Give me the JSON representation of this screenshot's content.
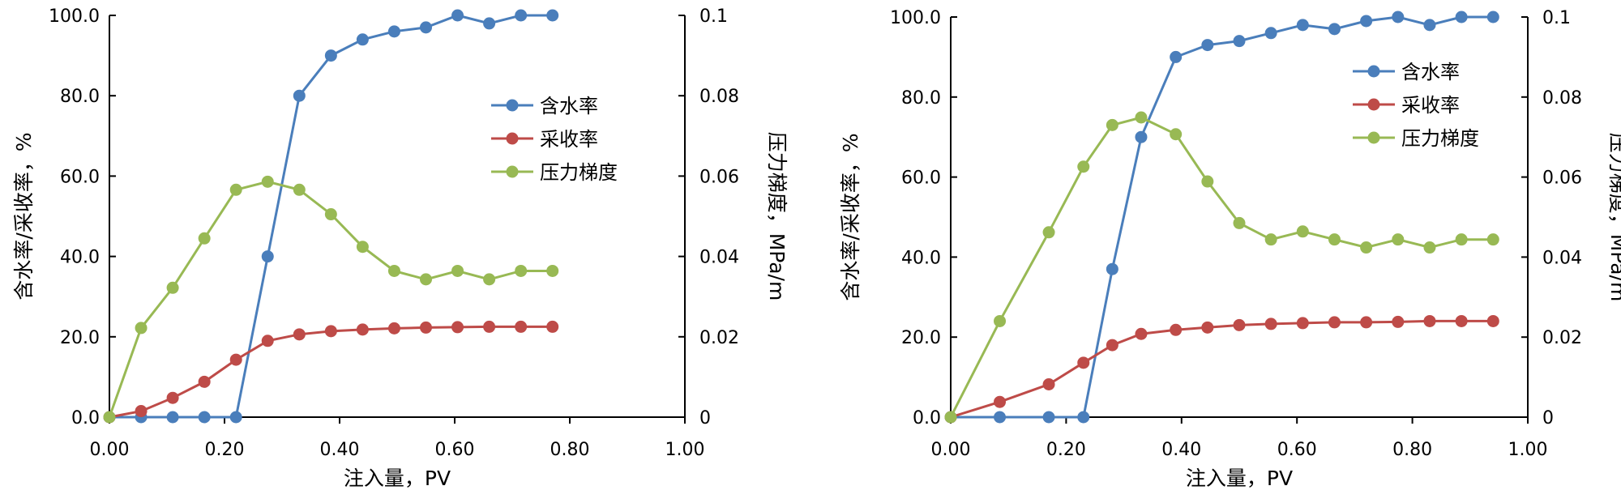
{
  "chart_data": [
    {
      "type": "line",
      "title": "",
      "xlabel": "注入量，PV",
      "ylabel": "含水率/采收率，%",
      "y2label": "压力梯度，MPa/m",
      "xlim": [
        0,
        1.0
      ],
      "ylim": [
        0,
        100
      ],
      "y2lim": [
        0,
        0.1
      ],
      "xticks": [
        "0.00",
        "0.20",
        "0.40",
        "0.60",
        "0.80",
        "1.00"
      ],
      "yticks": [
        "0.0",
        "20.0",
        "40.0",
        "60.0",
        "80.0",
        "100.0"
      ],
      "y2ticks": [
        "0",
        "0.02",
        "0.04",
        "0.06",
        "0.08",
        "0.1"
      ],
      "legend_position": "right",
      "series": [
        {
          "name": "含水率",
          "color": "#4A7EBB",
          "axis": "left",
          "x": [
            0,
            0.055,
            0.11,
            0.165,
            0.22,
            0.275,
            0.33,
            0.385,
            0.44,
            0.495,
            0.55,
            0.605,
            0.66,
            0.715,
            0.77
          ],
          "y": [
            0,
            0,
            0,
            0,
            0,
            40,
            80,
            90,
            94,
            96,
            97,
            100,
            98,
            100,
            100
          ]
        },
        {
          "name": "采收率",
          "color": "#BE4B48",
          "axis": "left",
          "x": [
            0,
            0.055,
            0.11,
            0.165,
            0.22,
            0.275,
            0.33,
            0.385,
            0.44,
            0.495,
            0.55,
            0.605,
            0.66,
            0.715,
            0.77
          ],
          "y": [
            0,
            1.5,
            4.8,
            8.8,
            14.3,
            19.0,
            20.6,
            21.4,
            21.8,
            22.1,
            22.3,
            22.4,
            22.5,
            22.5,
            22.5
          ]
        },
        {
          "name": "压力梯度",
          "color": "#98B954",
          "axis": "right",
          "x": [
            0,
            0.055,
            0.11,
            0.165,
            0.22,
            0.275,
            0.33,
            0.385,
            0.44,
            0.495,
            0.55,
            0.605,
            0.66,
            0.715,
            0.77
          ],
          "y": [
            0,
            0.0222,
            0.0322,
            0.0445,
            0.0566,
            0.0586,
            0.0566,
            0.0505,
            0.0424,
            0.0364,
            0.0343,
            0.0364,
            0.0343,
            0.0364,
            0.0364
          ]
        }
      ]
    },
    {
      "type": "line",
      "title": "",
      "xlabel": "注入量，PV",
      "ylabel": "含水率/采收率，%",
      "y2label": "压力梯度，MPa/m",
      "xlim": [
        0,
        1.0
      ],
      "ylim": [
        0,
        100
      ],
      "y2lim": [
        0,
        0.1
      ],
      "xticks": [
        "0.00",
        "0.20",
        "0.40",
        "0.60",
        "0.80",
        "1.00"
      ],
      "yticks": [
        "0.0",
        "20.0",
        "40.0",
        "60.0",
        "80.0",
        "100.0"
      ],
      "y2ticks": [
        "0",
        "0.02",
        "0.04",
        "0.06",
        "0.08",
        "0.1"
      ],
      "legend_position": "upper-right",
      "series": [
        {
          "name": "含水率",
          "color": "#4A7EBB",
          "axis": "left",
          "x": [
            0,
            0.085,
            0.17,
            0.23,
            0.28,
            0.33,
            0.39,
            0.445,
            0.5,
            0.555,
            0.61,
            0.665,
            0.72,
            0.775,
            0.83,
            0.885,
            0.94
          ],
          "y": [
            0,
            0,
            0,
            0,
            37,
            70,
            90,
            93,
            94,
            96,
            98,
            97,
            99,
            100,
            98,
            100,
            100
          ]
        },
        {
          "name": "采收率",
          "color": "#BE4B48",
          "axis": "left",
          "x": [
            0,
            0.085,
            0.17,
            0.23,
            0.28,
            0.33,
            0.39,
            0.445,
            0.5,
            0.555,
            0.61,
            0.665,
            0.72,
            0.775,
            0.83,
            0.885,
            0.94
          ],
          "y": [
            0,
            3.8,
            8.2,
            13.6,
            18.0,
            20.8,
            21.8,
            22.4,
            23.0,
            23.3,
            23.5,
            23.7,
            23.7,
            23.8,
            24.0,
            24.0,
            24.0
          ]
        },
        {
          "name": "压力梯度",
          "color": "#98B954",
          "axis": "right",
          "x": [
            0,
            0.085,
            0.17,
            0.23,
            0.28,
            0.33,
            0.39,
            0.445,
            0.5,
            0.555,
            0.61,
            0.665,
            0.72,
            0.775,
            0.83,
            0.885,
            0.94
          ],
          "y": [
            0,
            0.024,
            0.0462,
            0.0626,
            0.073,
            0.0749,
            0.0707,
            0.0589,
            0.0485,
            0.0444,
            0.0464,
            0.0444,
            0.0424,
            0.0444,
            0.0424,
            0.0444,
            0.0444
          ]
        }
      ]
    }
  ]
}
